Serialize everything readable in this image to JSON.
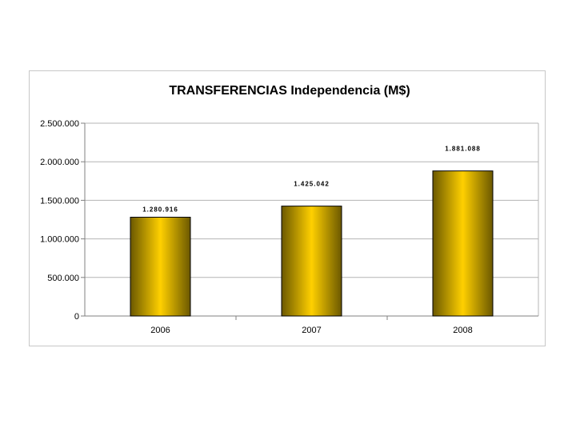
{
  "chart_data": {
    "type": "bar",
    "title": "TRANSFERENCIAS Independencia (M$)",
    "xlabel": "",
    "ylabel": "",
    "categories": [
      "2006",
      "2007",
      "2008"
    ],
    "values": [
      1280916,
      1425042,
      1881088
    ],
    "data_labels": [
      "1.280.916",
      "1.425.042",
      "1.881.088"
    ],
    "ylim": [
      0,
      2500000
    ],
    "y_ticks": [
      0,
      500000,
      1000000,
      1500000,
      2000000,
      2500000
    ],
    "y_tick_labels": [
      "0",
      "500.000",
      "1.000.000",
      "1.500.000",
      "2.000.000",
      "2.500.000"
    ],
    "grid": true,
    "legend": "none",
    "colors": {
      "bar_light": "#ffd000",
      "bar_dark": "#6b5800",
      "bar_edge": "#000000"
    }
  }
}
